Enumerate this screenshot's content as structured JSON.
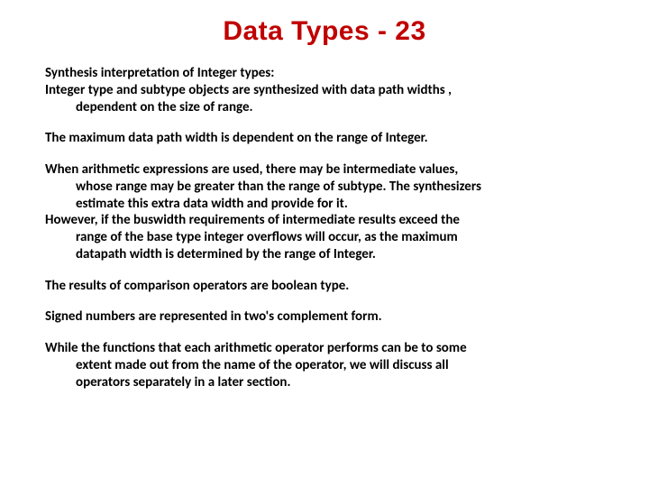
{
  "title_text": "Data Types - 23",
  "title_color": "#c00000",
  "title_fontsize": 30,
  "title_fontfamily": "Arial Black, Arial, sans-serif",
  "body_color": "#000000",
  "body_fontsize": 15,
  "body_fontweight": 700,
  "background_color": "#ffffff",
  "paragraphs": {
    "p1_l1": "Synthesis interpretation  of Integer types:",
    "p1_l2": "Integer type and subtype objects are synthesized with data path widths ,",
    "p1_l3": "dependent on the size of range.",
    "p2": "The maximum data path width is dependent on the range of  Integer.",
    "p3_l1": "When arithmetic expressions are used, there may be intermediate values,",
    "p3_l2": "whose range may be greater than the range of subtype. The synthesizers",
    "p3_l3": "estimate this  extra data width and provide for it.",
    "p3_l4": "However, if the buswidth requirements of intermediate results exceed the",
    "p3_l5": "range of the base type integer overflows will occur, as the maximum",
    "p3_l6": "datapath width is determined by the range of Integer.",
    "p4": "The results of comparison operators are boolean type.",
    "p5": "Signed numbers are represented in two's complement form.",
    "p6_l1": "While the functions that each arithmetic operator performs can be to some",
    "p6_l2": "extent made out from the name of the operator, we will discuss all",
    "p6_l3": "operators separately in a later section."
  }
}
